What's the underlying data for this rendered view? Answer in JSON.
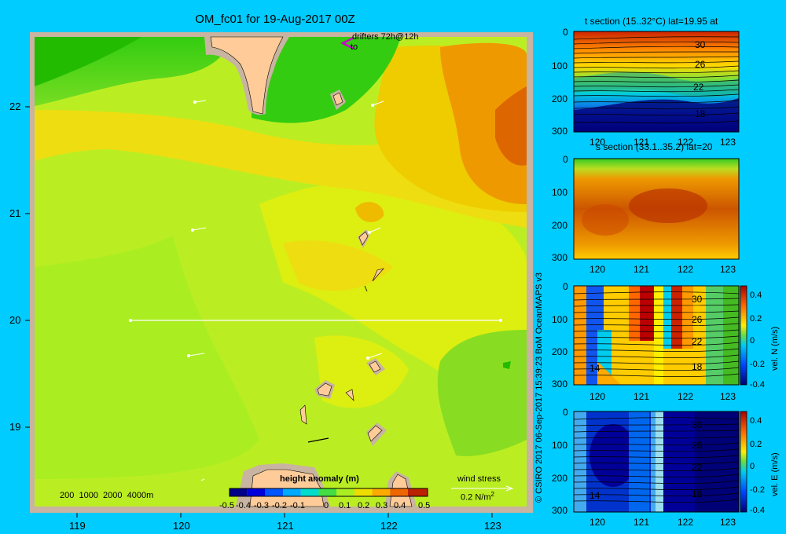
{
  "map": {
    "title": "OM_fc01 for 19-Aug-2017 00Z",
    "lon_ticks": [
      "119",
      "120",
      "121",
      "122",
      "123"
    ],
    "lat_ticks": [
      "22",
      "21",
      "20",
      "19"
    ],
    "drifters_label": "drifters 72h@12h",
    "drifters_to": "to",
    "depth_legend": "200  1000  2000  4000m",
    "wind_label": "wind stress",
    "wind_scale": "0.2 N/m",
    "wind_scale_sup": "2",
    "colorbar_title": "height anomaly (m)",
    "colorbar_ticks": [
      "-0.5",
      "-0.4",
      "-0.3",
      "-0.2",
      "-0.1",
      "0",
      "0.1",
      "0.2",
      "0.3",
      "0.4",
      "0.5"
    ],
    "credit": "© CSIRO 2017   06-Sep-2017 15:39:23 BoM OceanMAPS v3"
  },
  "panels": [
    {
      "title": "t section (15..32°C) lat=19.95 at",
      "x_ticks": [
        "120",
        "121",
        "122",
        "123"
      ],
      "y_ticks": [
        "0",
        "100",
        "200",
        "300"
      ],
      "contour_labels": [
        "30",
        "26",
        "22",
        "18"
      ]
    },
    {
      "title": "s section (33.1..35.2) lat=20",
      "x_ticks": [
        "120",
        "121",
        "122",
        "123"
      ],
      "y_ticks": [
        "0",
        "100",
        "200",
        "300"
      ]
    },
    {
      "title": "",
      "x_ticks": [
        "120",
        "121",
        "122",
        "123"
      ],
      "y_ticks": [
        "0",
        "100",
        "200",
        "300"
      ],
      "contour_labels": [
        "30",
        "26",
        "22",
        "18",
        "14"
      ],
      "cb_label": "vel. N (m/s)",
      "cb_ticks": [
        "0.4",
        "0.2",
        "0",
        "-0.2",
        "-0.4"
      ]
    },
    {
      "title": "",
      "x_ticks": [
        "120",
        "121",
        "122",
        "123"
      ],
      "y_ticks": [
        "0",
        "100",
        "200",
        "300"
      ],
      "contour_labels": [
        "30",
        "26",
        "22",
        "18",
        "14"
      ],
      "cb_label": "vel. E (m/s)",
      "cb_ticks": [
        "0.4",
        "0.2",
        "0",
        "-0.2",
        "-0.4"
      ]
    }
  ]
}
